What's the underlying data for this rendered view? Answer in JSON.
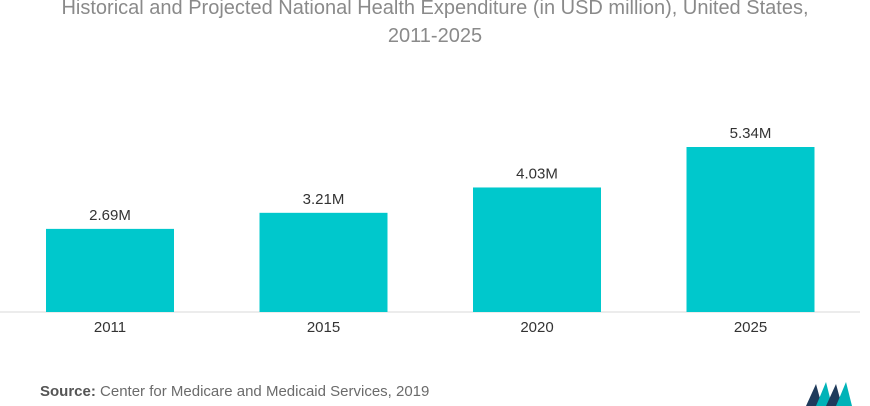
{
  "title_line1": "Historical and Projected National Health Expenditure (in USD million), United States,",
  "title_line2": "2011-2025",
  "source_label": "Source:",
  "source_text": "Center for Medicare and Medicaid Services, 2019",
  "colors": {
    "bar": "#00c8cc",
    "axis": "#d9d9d9",
    "label": "#333333",
    "title": "#8a8a8a"
  },
  "chart_data": {
    "type": "bar",
    "categories": [
      "2011",
      "2015",
      "2020",
      "2025"
    ],
    "values": [
      2.69,
      3.21,
      4.03,
      5.34
    ],
    "value_labels": [
      "2.69M",
      "3.21M",
      "4.03M",
      "5.34M"
    ],
    "title": "Historical and Projected National Health Expenditure (in USD million), United States, 2011-2025",
    "xlabel": "",
    "ylabel": "",
    "ylim": [
      0,
      5.34
    ],
    "grid": false,
    "legend": "none"
  }
}
